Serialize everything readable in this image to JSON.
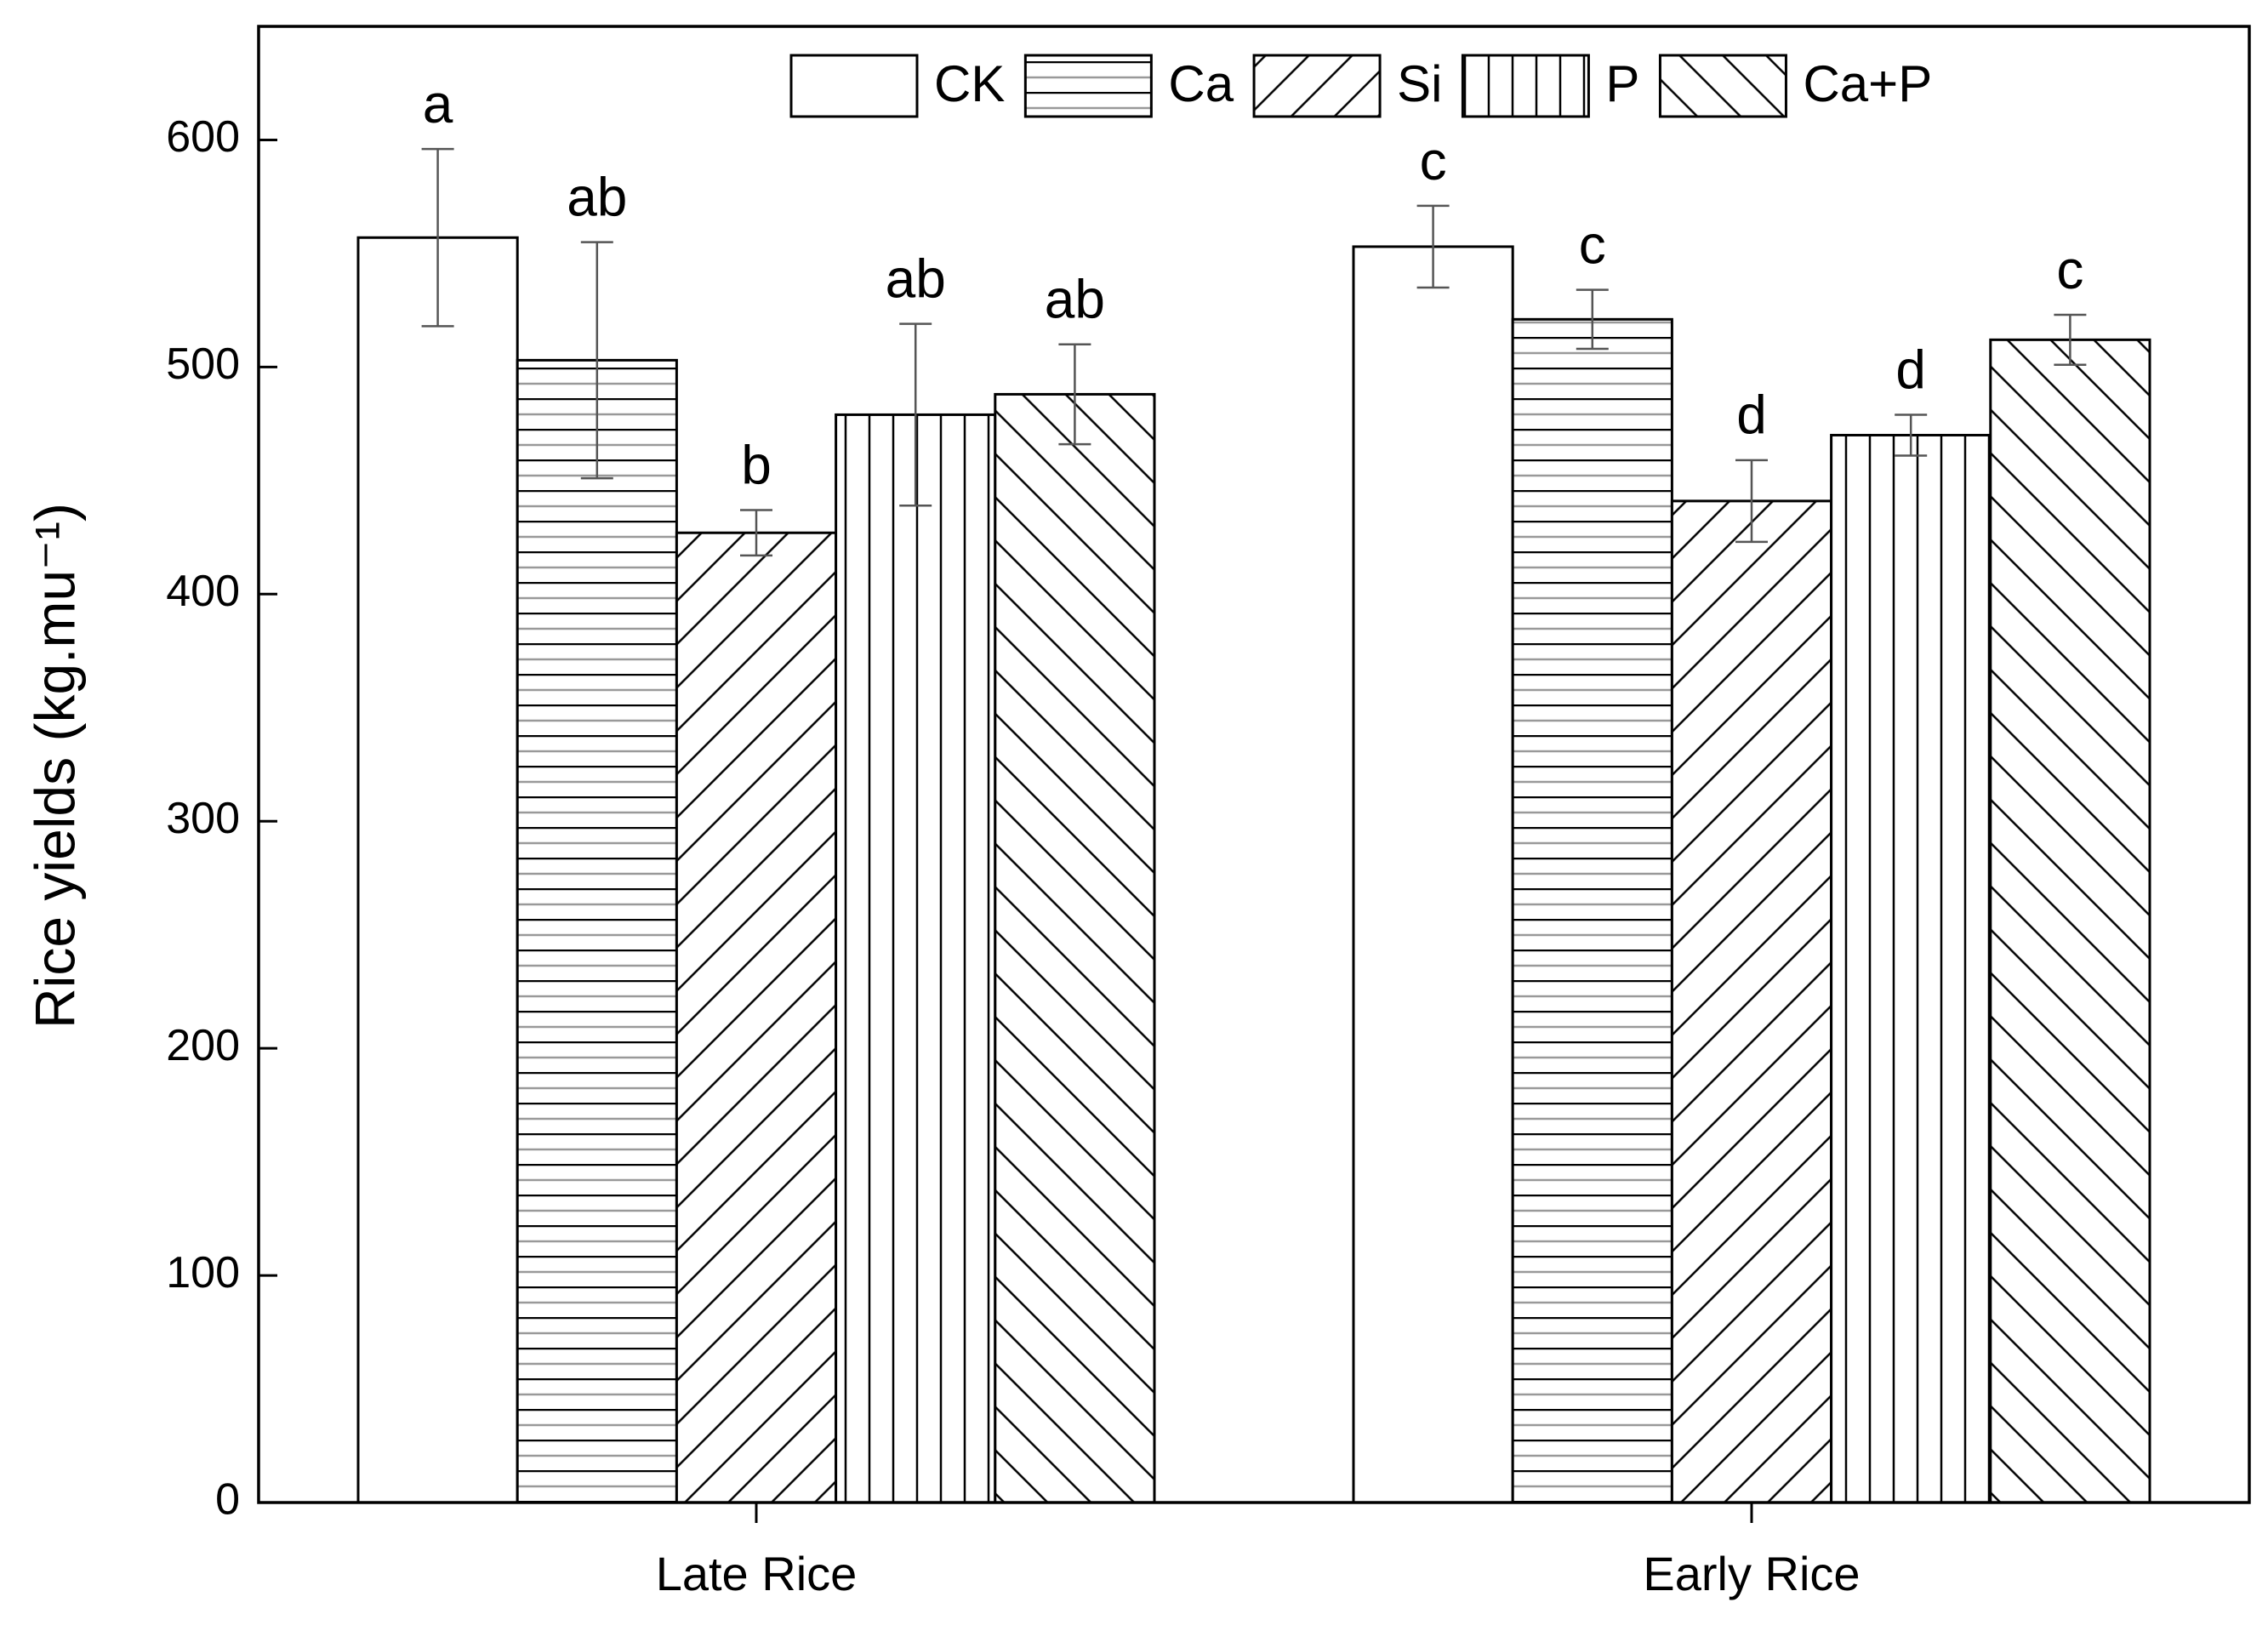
{
  "chart_data": {
    "type": "bar",
    "y_label": "Rice yields (kg.mu⁻¹)",
    "categories": [
      "Late Rice",
      "Early Rice"
    ],
    "series": [
      {
        "name": "CK",
        "color": "#000000",
        "pattern": "none",
        "values": [
          557,
          553
        ],
        "errors": [
          39,
          18
        ],
        "labels": [
          "a",
          "c"
        ]
      },
      {
        "name": "Ca",
        "color": "#000000",
        "pattern": "horizontal",
        "values": [
          503,
          521
        ],
        "errors": [
          52,
          13
        ],
        "labels": [
          "ab",
          "c"
        ]
      },
      {
        "name": "Si",
        "color": "#000000",
        "pattern": "forward-diagonal",
        "values": [
          427,
          441
        ],
        "errors": [
          10,
          18
        ],
        "labels": [
          "b",
          "d"
        ]
      },
      {
        "name": "P",
        "color": "#000000",
        "pattern": "vertical",
        "values": [
          479,
          470
        ],
        "errors": [
          40,
          9
        ],
        "labels": [
          "ab",
          "d"
        ]
      },
      {
        "name": "Ca+P",
        "color": "#000000",
        "pattern": "backward-diagonal",
        "values": [
          488,
          512
        ],
        "errors": [
          22,
          11
        ],
        "labels": [
          "ab",
          "c"
        ]
      }
    ],
    "ylim": [
      0,
      650
    ],
    "yticks": [
      0,
      100,
      200,
      300,
      400,
      500,
      600
    ],
    "legend": "top"
  }
}
